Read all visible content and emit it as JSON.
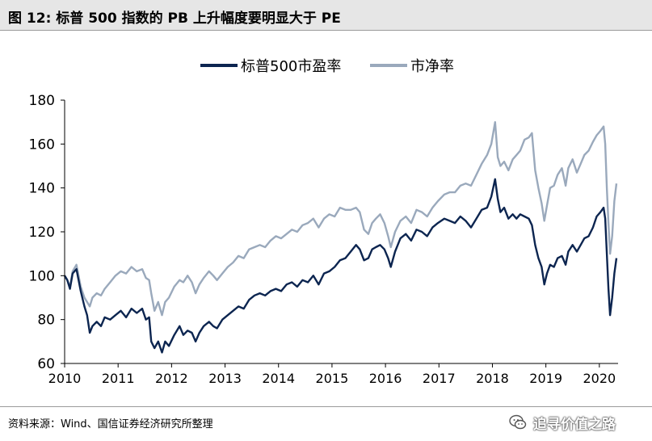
{
  "title": "图  12: 标普 500 指数的 PB 上升幅度要明显大于 PE",
  "source": "资料来源：Wind、国信证券经济研究所整理",
  "watermark": "追寻价值之路",
  "colors": {
    "pe": "#0c2550",
    "pb": "#9aa9bc",
    "axis": "#000000",
    "header_bg": "#e6e6e6"
  },
  "chart_data": {
    "type": "line",
    "title": "",
    "xlabel": "",
    "ylabel": "",
    "legend_position": "top-center",
    "grid": false,
    "xlim": [
      2010,
      2020.35
    ],
    "ylim": [
      60,
      180
    ],
    "x_ticks": [
      2010,
      2011,
      2012,
      2013,
      2014,
      2015,
      2016,
      2017,
      2018,
      2019,
      2020
    ],
    "y_ticks": [
      60,
      80,
      100,
      120,
      140,
      160,
      180
    ],
    "series": [
      {
        "name": "标普500市盈率",
        "color": "#0c2550",
        "points": [
          [
            2010.0,
            100
          ],
          [
            2010.05,
            98
          ],
          [
            2010.1,
            94
          ],
          [
            2010.15,
            101
          ],
          [
            2010.22,
            103
          ],
          [
            2010.3,
            93
          ],
          [
            2010.37,
            86
          ],
          [
            2010.42,
            82
          ],
          [
            2010.47,
            74
          ],
          [
            2010.52,
            77
          ],
          [
            2010.6,
            79
          ],
          [
            2010.68,
            77
          ],
          [
            2010.75,
            81
          ],
          [
            2010.85,
            80
          ],
          [
            2010.95,
            82
          ],
          [
            2011.05,
            84
          ],
          [
            2011.15,
            81
          ],
          [
            2011.25,
            85
          ],
          [
            2011.35,
            83
          ],
          [
            2011.45,
            85
          ],
          [
            2011.52,
            80
          ],
          [
            2011.58,
            81
          ],
          [
            2011.62,
            70
          ],
          [
            2011.68,
            67
          ],
          [
            2011.75,
            70
          ],
          [
            2011.82,
            65
          ],
          [
            2011.88,
            70
          ],
          [
            2011.95,
            68
          ],
          [
            2012.05,
            73
          ],
          [
            2012.15,
            77
          ],
          [
            2012.22,
            73
          ],
          [
            2012.3,
            75
          ],
          [
            2012.38,
            74
          ],
          [
            2012.45,
            70
          ],
          [
            2012.52,
            74
          ],
          [
            2012.6,
            77
          ],
          [
            2012.7,
            79
          ],
          [
            2012.78,
            77
          ],
          [
            2012.85,
            76
          ],
          [
            2012.95,
            80
          ],
          [
            2013.05,
            82
          ],
          [
            2013.15,
            84
          ],
          [
            2013.25,
            86
          ],
          [
            2013.35,
            85
          ],
          [
            2013.45,
            89
          ],
          [
            2013.55,
            91
          ],
          [
            2013.65,
            92
          ],
          [
            2013.75,
            91
          ],
          [
            2013.85,
            93
          ],
          [
            2013.95,
            94
          ],
          [
            2014.05,
            93
          ],
          [
            2014.15,
            96
          ],
          [
            2014.25,
            97
          ],
          [
            2014.35,
            95
          ],
          [
            2014.45,
            98
          ],
          [
            2014.55,
            97
          ],
          [
            2014.65,
            100
          ],
          [
            2014.75,
            96
          ],
          [
            2014.85,
            101
          ],
          [
            2014.95,
            102
          ],
          [
            2015.05,
            104
          ],
          [
            2015.15,
            107
          ],
          [
            2015.25,
            108
          ],
          [
            2015.35,
            111
          ],
          [
            2015.45,
            114
          ],
          [
            2015.52,
            112
          ],
          [
            2015.6,
            107
          ],
          [
            2015.68,
            108
          ],
          [
            2015.75,
            112
          ],
          [
            2015.82,
            113
          ],
          [
            2015.9,
            114
          ],
          [
            2015.98,
            112
          ],
          [
            2016.05,
            108
          ],
          [
            2016.1,
            104
          ],
          [
            2016.18,
            111
          ],
          [
            2016.28,
            117
          ],
          [
            2016.38,
            119
          ],
          [
            2016.48,
            116
          ],
          [
            2016.58,
            121
          ],
          [
            2016.68,
            120
          ],
          [
            2016.78,
            118
          ],
          [
            2016.88,
            122
          ],
          [
            2016.98,
            124
          ],
          [
            2017.1,
            126
          ],
          [
            2017.2,
            125
          ],
          [
            2017.3,
            124
          ],
          [
            2017.4,
            127
          ],
          [
            2017.5,
            125
          ],
          [
            2017.6,
            122
          ],
          [
            2017.7,
            126
          ],
          [
            2017.8,
            130
          ],
          [
            2017.9,
            131
          ],
          [
            2017.98,
            136
          ],
          [
            2018.05,
            144
          ],
          [
            2018.1,
            135
          ],
          [
            2018.15,
            129
          ],
          [
            2018.22,
            131
          ],
          [
            2018.3,
            126
          ],
          [
            2018.38,
            128
          ],
          [
            2018.45,
            126
          ],
          [
            2018.52,
            128
          ],
          [
            2018.6,
            127
          ],
          [
            2018.68,
            126
          ],
          [
            2018.74,
            123
          ],
          [
            2018.8,
            114
          ],
          [
            2018.86,
            108
          ],
          [
            2018.92,
            104
          ],
          [
            2018.97,
            96
          ],
          [
            2019.02,
            101
          ],
          [
            2019.08,
            105
          ],
          [
            2019.15,
            104
          ],
          [
            2019.22,
            108
          ],
          [
            2019.3,
            109
          ],
          [
            2019.37,
            105
          ],
          [
            2019.42,
            111
          ],
          [
            2019.5,
            114
          ],
          [
            2019.58,
            111
          ],
          [
            2019.65,
            114
          ],
          [
            2019.72,
            117
          ],
          [
            2019.8,
            118
          ],
          [
            2019.88,
            122
          ],
          [
            2019.95,
            127
          ],
          [
            2020.02,
            129
          ],
          [
            2020.08,
            131
          ],
          [
            2020.11,
            126
          ],
          [
            2020.14,
            110
          ],
          [
            2020.17,
            94
          ],
          [
            2020.2,
            82
          ],
          [
            2020.24,
            90
          ],
          [
            2020.28,
            101
          ],
          [
            2020.32,
            108
          ]
        ]
      },
      {
        "name": "市净率",
        "color": "#9aa9bc",
        "points": [
          [
            2010.0,
            100
          ],
          [
            2010.05,
            98
          ],
          [
            2010.1,
            95
          ],
          [
            2010.15,
            102
          ],
          [
            2010.22,
            105
          ],
          [
            2010.3,
            95
          ],
          [
            2010.37,
            90
          ],
          [
            2010.42,
            88
          ],
          [
            2010.47,
            86
          ],
          [
            2010.52,
            90
          ],
          [
            2010.6,
            92
          ],
          [
            2010.68,
            91
          ],
          [
            2010.75,
            94
          ],
          [
            2010.85,
            97
          ],
          [
            2010.95,
            100
          ],
          [
            2011.05,
            102
          ],
          [
            2011.15,
            101
          ],
          [
            2011.25,
            104
          ],
          [
            2011.35,
            102
          ],
          [
            2011.45,
            103
          ],
          [
            2011.52,
            99
          ],
          [
            2011.58,
            98
          ],
          [
            2011.62,
            92
          ],
          [
            2011.68,
            84
          ],
          [
            2011.75,
            88
          ],
          [
            2011.82,
            82
          ],
          [
            2011.88,
            88
          ],
          [
            2011.95,
            90
          ],
          [
            2012.05,
            95
          ],
          [
            2012.15,
            98
          ],
          [
            2012.22,
            97
          ],
          [
            2012.3,
            100
          ],
          [
            2012.38,
            97
          ],
          [
            2012.45,
            92
          ],
          [
            2012.52,
            96
          ],
          [
            2012.6,
            99
          ],
          [
            2012.7,
            102
          ],
          [
            2012.78,
            100
          ],
          [
            2012.85,
            98
          ],
          [
            2012.95,
            101
          ],
          [
            2013.05,
            104
          ],
          [
            2013.15,
            106
          ],
          [
            2013.25,
            109
          ],
          [
            2013.35,
            108
          ],
          [
            2013.45,
            112
          ],
          [
            2013.55,
            113
          ],
          [
            2013.65,
            114
          ],
          [
            2013.75,
            113
          ],
          [
            2013.85,
            116
          ],
          [
            2013.95,
            118
          ],
          [
            2014.05,
            117
          ],
          [
            2014.15,
            119
          ],
          [
            2014.25,
            121
          ],
          [
            2014.35,
            120
          ],
          [
            2014.45,
            123
          ],
          [
            2014.55,
            124
          ],
          [
            2014.65,
            126
          ],
          [
            2014.75,
            122
          ],
          [
            2014.85,
            126
          ],
          [
            2014.95,
            128
          ],
          [
            2015.05,
            127
          ],
          [
            2015.15,
            131
          ],
          [
            2015.25,
            130
          ],
          [
            2015.35,
            130
          ],
          [
            2015.45,
            131
          ],
          [
            2015.52,
            129
          ],
          [
            2015.6,
            121
          ],
          [
            2015.68,
            119
          ],
          [
            2015.75,
            124
          ],
          [
            2015.82,
            126
          ],
          [
            2015.9,
            128
          ],
          [
            2015.98,
            124
          ],
          [
            2016.05,
            118
          ],
          [
            2016.1,
            113
          ],
          [
            2016.18,
            120
          ],
          [
            2016.28,
            125
          ],
          [
            2016.38,
            127
          ],
          [
            2016.48,
            124
          ],
          [
            2016.58,
            130
          ],
          [
            2016.68,
            129
          ],
          [
            2016.78,
            127
          ],
          [
            2016.88,
            131
          ],
          [
            2016.98,
            134
          ],
          [
            2017.1,
            137
          ],
          [
            2017.2,
            138
          ],
          [
            2017.3,
            138
          ],
          [
            2017.4,
            141
          ],
          [
            2017.5,
            142
          ],
          [
            2017.6,
            141
          ],
          [
            2017.7,
            146
          ],
          [
            2017.8,
            151
          ],
          [
            2017.9,
            155
          ],
          [
            2017.98,
            160
          ],
          [
            2018.05,
            170
          ],
          [
            2018.1,
            154
          ],
          [
            2018.15,
            150
          ],
          [
            2018.22,
            152
          ],
          [
            2018.3,
            148
          ],
          [
            2018.38,
            153
          ],
          [
            2018.45,
            155
          ],
          [
            2018.52,
            157
          ],
          [
            2018.6,
            162
          ],
          [
            2018.68,
            163
          ],
          [
            2018.74,
            165
          ],
          [
            2018.8,
            148
          ],
          [
            2018.86,
            140
          ],
          [
            2018.92,
            133
          ],
          [
            2018.97,
            125
          ],
          [
            2019.02,
            132
          ],
          [
            2019.08,
            140
          ],
          [
            2019.15,
            141
          ],
          [
            2019.22,
            146
          ],
          [
            2019.3,
            149
          ],
          [
            2019.37,
            141
          ],
          [
            2019.42,
            149
          ],
          [
            2019.5,
            153
          ],
          [
            2019.58,
            147
          ],
          [
            2019.65,
            151
          ],
          [
            2019.72,
            155
          ],
          [
            2019.8,
            157
          ],
          [
            2019.88,
            161
          ],
          [
            2019.95,
            164
          ],
          [
            2020.02,
            166
          ],
          [
            2020.08,
            168
          ],
          [
            2020.11,
            160
          ],
          [
            2020.14,
            140
          ],
          [
            2020.17,
            124
          ],
          [
            2020.2,
            110
          ],
          [
            2020.24,
            118
          ],
          [
            2020.28,
            134
          ],
          [
            2020.32,
            142
          ]
        ]
      }
    ]
  }
}
